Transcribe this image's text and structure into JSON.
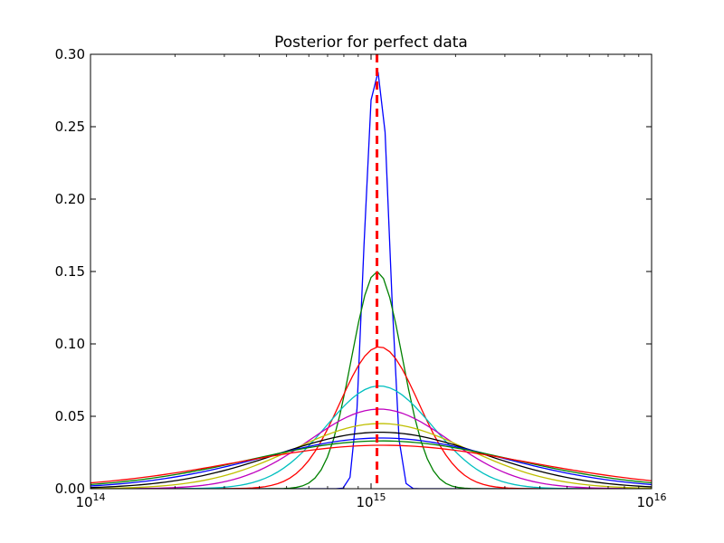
{
  "chart_data": {
    "type": "line",
    "title": "Posterior for perfect data",
    "xlabel": "",
    "ylabel": "",
    "xscale": "log",
    "xlim": [
      100000000000000.0,
      1e+16
    ],
    "ylim": [
      0,
      0.3
    ],
    "grid": false,
    "legend": "none",
    "x_tick_labels": [
      {
        "value": 100000000000000.0,
        "base": "10",
        "exp": "14"
      },
      {
        "value": 1000000000000000.0,
        "base": "10",
        "exp": "15"
      },
      {
        "value": 1e+16,
        "base": "10",
        "exp": "16"
      }
    ],
    "y_ticks": [
      0.0,
      0.05,
      0.1,
      0.15,
      0.2,
      0.25,
      0.3
    ],
    "y_tick_labels": [
      "0.00",
      "0.05",
      "0.10",
      "0.15",
      "0.20",
      "0.25",
      "0.30"
    ],
    "reference_line": {
      "x": 1050000000000000.0,
      "color": "#ff0000",
      "style": "dashed"
    },
    "series": [
      {
        "color": "#0000ff",
        "peak_x": 1050000000000000.0,
        "peak_y": 0.288,
        "log_sigma": 0.045,
        "shape": "narrow"
      },
      {
        "color": "#008000",
        "peak_x": 1050000000000000.0,
        "peak_y": 0.15,
        "log_sigma": 0.09
      },
      {
        "color": "#ff0000",
        "peak_x": 1070000000000000.0,
        "peak_y": 0.098,
        "log_sigma": 0.14
      },
      {
        "color": "#00bfbf",
        "peak_x": 1070000000000000.0,
        "peak_y": 0.071,
        "log_sigma": 0.19
      },
      {
        "color": "#bf00bf",
        "peak_x": 1070000000000000.0,
        "peak_y": 0.055,
        "log_sigma": 0.25
      },
      {
        "color": "#bfbf00",
        "peak_x": 1080000000000000.0,
        "peak_y": 0.045,
        "log_sigma": 0.31
      },
      {
        "color": "#000000",
        "peak_x": 1080000000000000.0,
        "peak_y": 0.039,
        "log_sigma": 0.37
      },
      {
        "color": "#0000ff",
        "peak_x": 1090000000000000.0,
        "peak_y": 0.035,
        "log_sigma": 0.43
      },
      {
        "color": "#008000",
        "peak_x": 1090000000000000.0,
        "peak_y": 0.033,
        "log_sigma": 0.47
      },
      {
        "color": "#ff0000",
        "peak_x": 1100000000000000.0,
        "peak_y": 0.03,
        "log_sigma": 0.52
      }
    ]
  }
}
